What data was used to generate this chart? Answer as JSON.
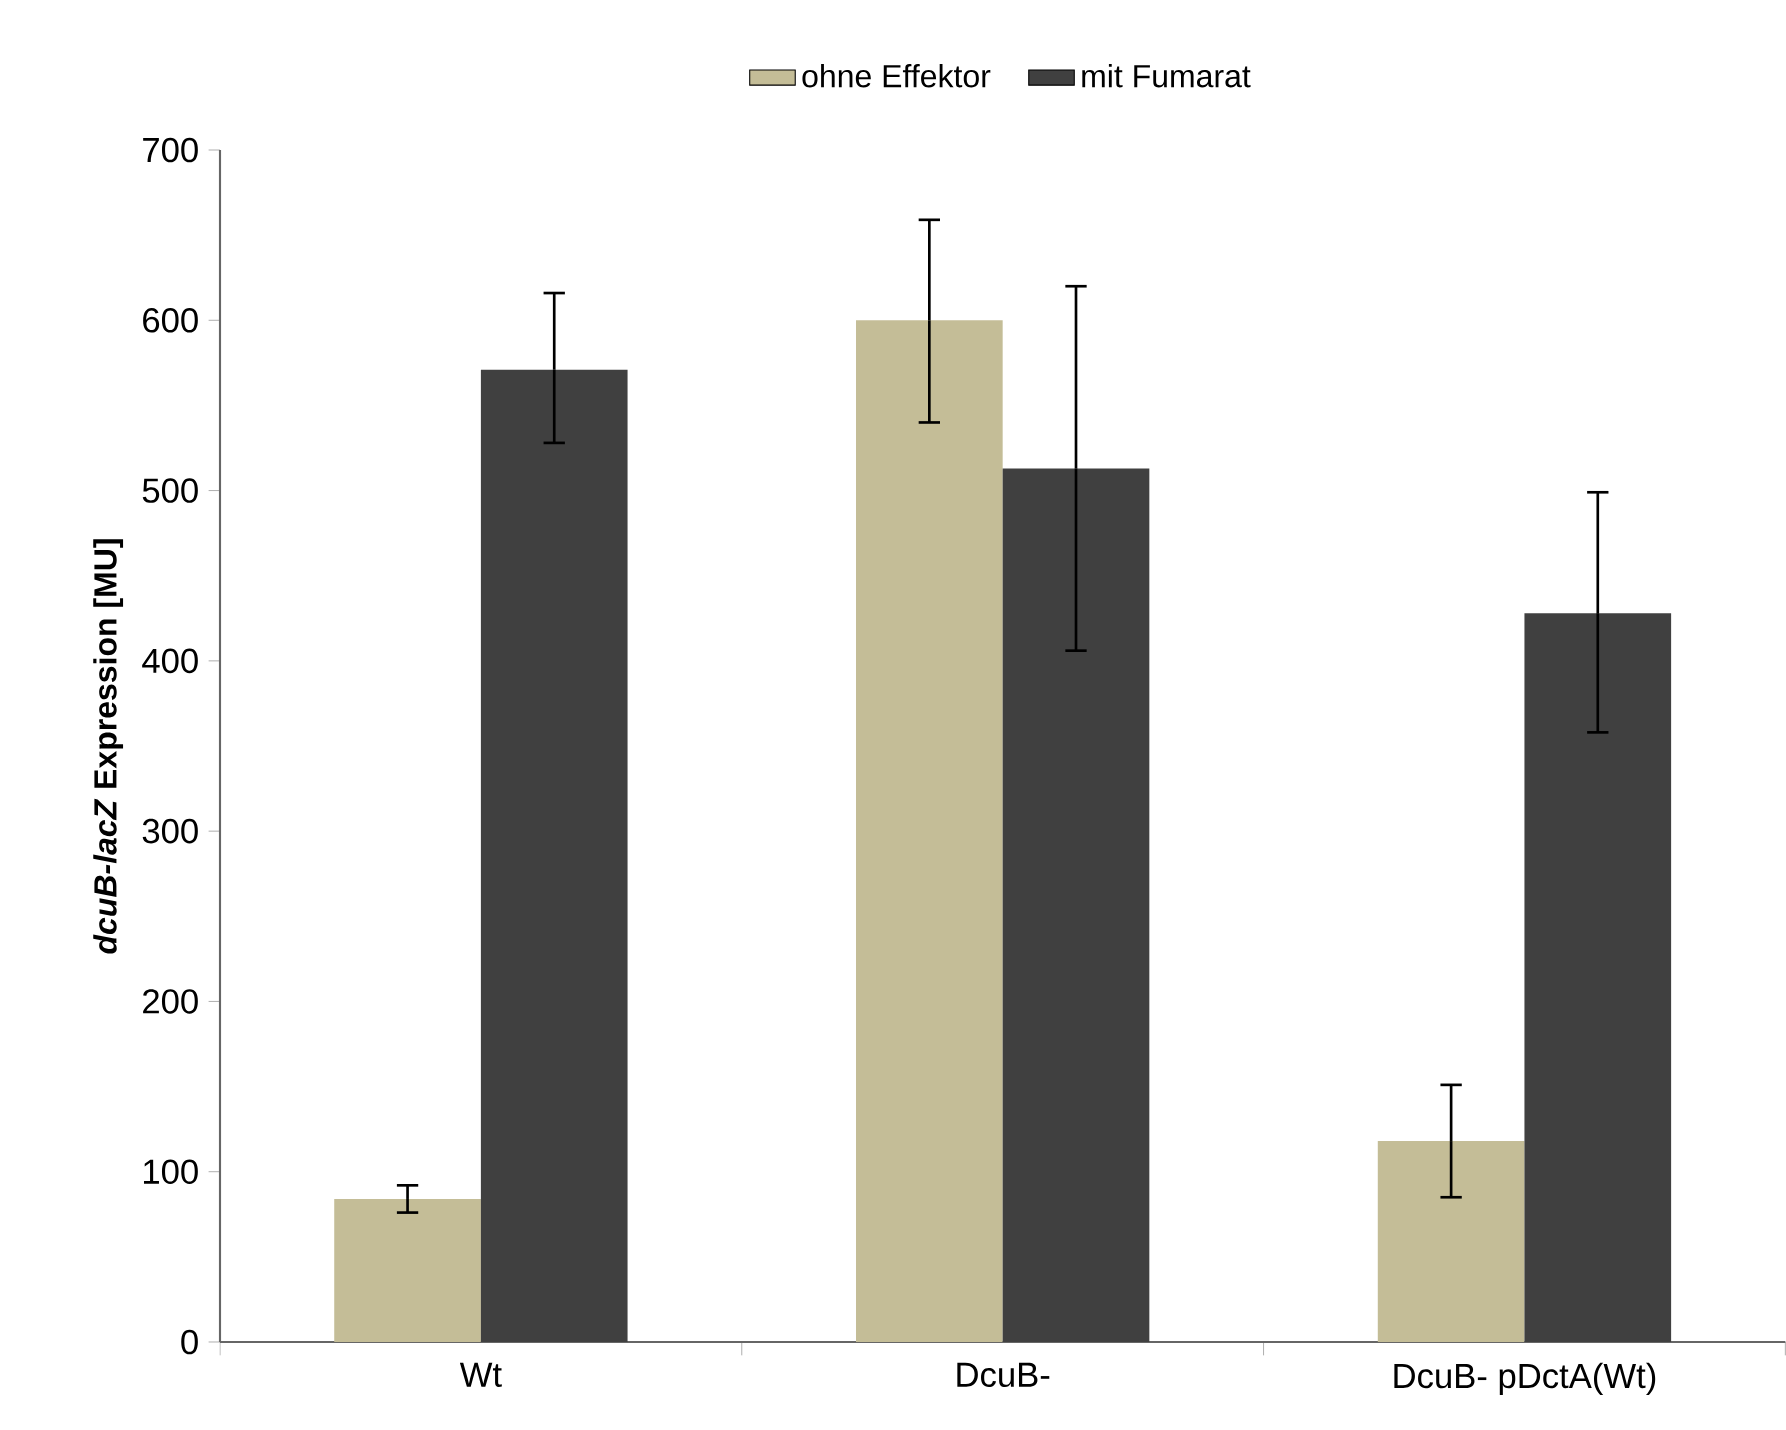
{
  "chart_data": {
    "type": "bar",
    "ylabel": "*dcuB-lacZ* Expression [MU]",
    "categories": [
      "Wt",
      "DcuB-",
      "DcuB- pDctA(Wt)"
    ],
    "series": [
      {
        "name": "ohne Effektor",
        "color": "#c4bd97",
        "values": [
          84,
          600,
          118
        ],
        "errors": [
          [
            76,
            92
          ],
          [
            540,
            659
          ],
          [
            85,
            151
          ]
        ]
      },
      {
        "name": "mit Fumarat",
        "color": "#404040",
        "values": [
          571,
          513,
          428
        ],
        "errors": [
          [
            528,
            616
          ],
          [
            406,
            620
          ],
          [
            358,
            499
          ]
        ]
      }
    ],
    "ylim": [
      0,
      700
    ],
    "yticks": [
      0,
      100,
      200,
      300,
      400,
      500,
      600,
      700
    ],
    "legend": "top"
  }
}
